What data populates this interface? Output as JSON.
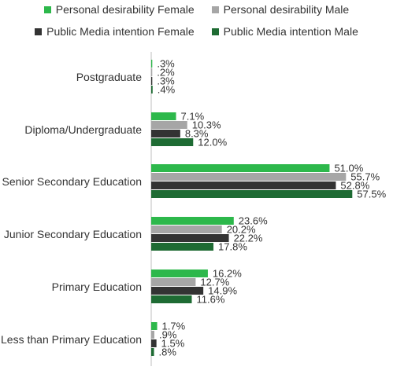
{
  "chart_data": {
    "type": "bar",
    "orientation": "horizontal",
    "title": "",
    "xlabel": "",
    "ylabel": "",
    "legend_position": "top",
    "grid": false,
    "xlim": [
      0,
      60
    ],
    "categories": [
      "Postgraduate",
      "Diploma/Undergraduate",
      "Senior Secondary Education",
      "Junior Secondary Education",
      "Primary Education",
      "Less than Primary Education"
    ],
    "series": [
      {
        "name": "Personal desirability Female",
        "color": "#2db84b",
        "values": [
          0.3,
          7.1,
          51.0,
          23.6,
          16.2,
          1.7
        ],
        "labels": [
          ".3%",
          "7.1%",
          "51.0%",
          "23.6%",
          "16.2%",
          "1.7%"
        ]
      },
      {
        "name": "Personal desirability Male",
        "color": "#a6a6a6",
        "values": [
          0.2,
          10.3,
          55.7,
          20.2,
          12.7,
          0.9
        ],
        "labels": [
          ".2%",
          "10.3%",
          "55.7%",
          "20.2%",
          "12.7%",
          ".9%"
        ]
      },
      {
        "name": "Public Media intention Female",
        "color": "#333333",
        "values": [
          0.3,
          8.3,
          52.8,
          22.2,
          14.9,
          1.5
        ],
        "labels": [
          ".3%",
          "8.3%",
          "52.8%",
          "22.2%",
          "14.9%",
          "1.5%"
        ]
      },
      {
        "name": "Public Media intention Male",
        "color": "#1e6b33",
        "values": [
          0.4,
          12.0,
          57.5,
          17.8,
          11.6,
          0.8
        ],
        "labels": [
          ".4%",
          "12.0%",
          "57.5%",
          "17.8%",
          "11.6%",
          ".8%"
        ]
      }
    ]
  }
}
